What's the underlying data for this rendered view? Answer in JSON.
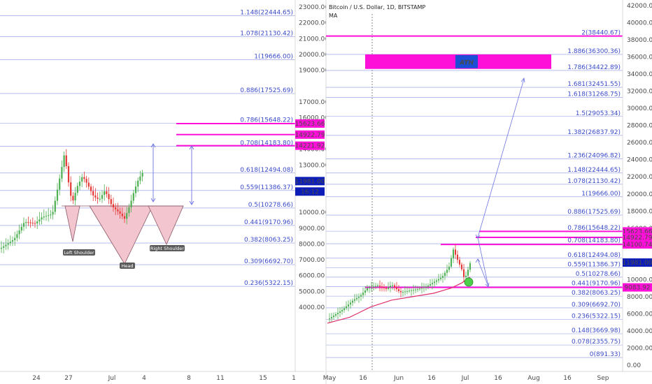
{
  "colors": {
    "fib_line": "#8c94e6",
    "fib_text": "#3a4bc9",
    "magenta": "#ff10d8",
    "bull": "#4caf50",
    "bear": "#e53935",
    "ma": "#e0306a",
    "wedge_fill": "#f3c6cf",
    "wedge_stroke": "#8a5a6a",
    "price_badge": "#0d1db8",
    "arrow": "#6c74e0",
    "grid_axis_bg": "#ffffff"
  },
  "chart_data": [
    {
      "type": "candlestick",
      "title": "",
      "xlabel": "",
      "ylabel": "",
      "ylim": [
        3800,
        23300
      ],
      "x_ticks": [
        "24",
        "27",
        "Jul",
        "4",
        "8",
        "11",
        "15",
        "1"
      ],
      "y_ticks": [
        "23000.00",
        "22000.00",
        "21000.00",
        "20000.00",
        "19000.00",
        "17000.00",
        "16000.00",
        "14000.00",
        "13000.00",
        "10000.00",
        "9000.00",
        "8000.00",
        "7000.00",
        "6000.00",
        "5000.00",
        "4000.00"
      ],
      "fib_levels": [
        {
          "label": "1.148(22444.65)",
          "value": 22444.65
        },
        {
          "label": "1.078(21130.42)",
          "value": 21130.42
        },
        {
          "label": "1(19666.00)",
          "value": 19666.0
        },
        {
          "label": "0.886(17525.69)",
          "value": 17525.69
        },
        {
          "label": "0.786(15648.22)",
          "value": 15648.22
        },
        {
          "label": "0.708(14183.80)",
          "value": 14183.8
        },
        {
          "label": "0.618(12494.08)",
          "value": 12494.08
        },
        {
          "label": "0.559(11386.37)",
          "value": 11386.37
        },
        {
          "label": "0.5(10278.66)",
          "value": 10278.66
        },
        {
          "label": "0.441(9170.96)",
          "value": 9170.96
        },
        {
          "label": "0.382(8063.25)",
          "value": 8063.25
        },
        {
          "label": "0.309(6692.70)",
          "value": 6692.7
        },
        {
          "label": "0.236(5322.15)",
          "value": 5322.15
        }
      ],
      "magenta_levels": [
        15623.66,
        14922.79,
        14221.92
      ],
      "price_badges": [
        {
          "label": "15623.66",
          "value": 15623.66
        },
        {
          "label": "14922.79",
          "value": 14922.79
        },
        {
          "label": "14221.92",
          "value": 14221.92
        },
        {
          "label": "11981.00",
          "value": 11981.0
        },
        {
          "label": "16:12",
          "value": 11320
        }
      ],
      "pattern_labels": [
        "Left Shoulder",
        "Head",
        "Right Shoulder"
      ]
    },
    {
      "type": "candlestick",
      "title": "Bitcoin / U.S. Dollar, 1D, BITSTAMP",
      "indicator": "MA",
      "xlabel": "",
      "ylabel": "",
      "ylim": [
        -500,
        42500
      ],
      "x_ticks": [
        "May",
        "16",
        "Jun",
        "16",
        "Jul",
        "16",
        "Aug",
        "16",
        "Sep"
      ],
      "y_ticks": [
        "42000.00",
        "40000.00",
        "38000.00",
        "36000.00",
        "34000.00",
        "32000.00",
        "30000.00",
        "28000.00",
        "26000.00",
        "24000.00",
        "22000.00",
        "20000.00",
        "18000.00",
        "16000.00",
        "14000.00",
        "12000.00",
        "10000.00",
        "8000.00",
        "6000.00",
        "4000.00",
        "2000.00",
        "0.00"
      ],
      "fib_levels": [
        {
          "label": "2(38440.67)",
          "value": 38440.67
        },
        {
          "label": "1.886(36300.36)",
          "value": 36300.36
        },
        {
          "label": "1.786(34422.89)",
          "value": 34422.89
        },
        {
          "label": "1.681(32451.55)",
          "value": 32451.55
        },
        {
          "label": "1.618(31268.75)",
          "value": 31268.75
        },
        {
          "label": "1.5(29053.34)",
          "value": 29053.34
        },
        {
          "label": "1.382(26837.92)",
          "value": 26837.92
        },
        {
          "label": "1.236(24096.82)",
          "value": 24096.82
        },
        {
          "label": "1.148(22444.65)",
          "value": 22444.65
        },
        {
          "label": "1.078(21130.42)",
          "value": 21130.42
        },
        {
          "label": "1(19666.00)",
          "value": 19666.0
        },
        {
          "label": "0.886(17525.69)",
          "value": 17525.69
        },
        {
          "label": "0.786(15648.22)",
          "value": 15648.22
        },
        {
          "label": "0.708(14183.80)",
          "value": 14183.8
        },
        {
          "label": "0.618(12494.08)",
          "value": 12494.08
        },
        {
          "label": "0.559(11386.37)",
          "value": 11386.37
        },
        {
          "label": "0.5(10278.66)",
          "value": 10278.66
        },
        {
          "label": "0.441(9170.96)",
          "value": 9170.96
        },
        {
          "label": "0.382(8063.25)",
          "value": 8063.25
        },
        {
          "label": "0.309(6692.70)",
          "value": 6692.7
        },
        {
          "label": "0.236(5322.15)",
          "value": 5322.15
        },
        {
          "label": "0.148(3669.98)",
          "value": 3669.98
        },
        {
          "label": "0.078(2355.75)",
          "value": 2355.75
        },
        {
          "label": "0(891.33)",
          "value": 891.33
        }
      ],
      "magenta_levels": [
        38440.67,
        15623.66,
        14922.79,
        14100.74,
        9083.92
      ],
      "ath_zone": {
        "label": "ATH",
        "from": 34600,
        "to": 36300
      },
      "price_badges": [
        {
          "label": "15623.66",
          "value": 15623.66
        },
        {
          "label": "14922.79",
          "value": 14922.79
        },
        {
          "label": "14100.74",
          "value": 14100.74
        },
        {
          "label": "11981.00",
          "value": 11981.0
        },
        {
          "label": "9083.92",
          "value": 9083.92
        }
      ]
    }
  ]
}
